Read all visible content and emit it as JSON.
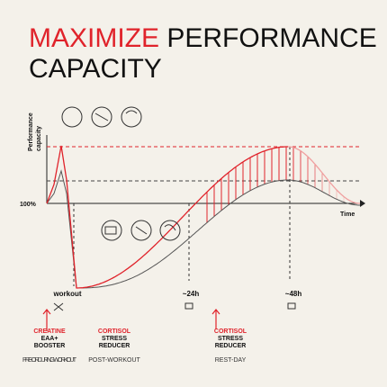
{
  "header": {
    "title_highlight": "MAXIMIZE",
    "title_rest": "PERFORMANCE",
    "title_line2": "CAPACITY"
  },
  "graph": {
    "y_label_1": "Performance",
    "y_label_2": "capacity",
    "baseline_label": "100%",
    "x_label": "Time",
    "markers": [
      "workout",
      "~24h",
      "~48h"
    ]
  },
  "products": [
    {
      "name": "CREATINE",
      "line2": "EAA+",
      "line3": "BOOSTER",
      "timing": "PRE- OR DURING WORKOUT"
    },
    {
      "name": "CORTISOL",
      "line2": "STRESS",
      "line3": "REDUCER",
      "timing": "POST-WORKOUT"
    },
    {
      "name": "CORTISOL",
      "line2": "STRESS",
      "line3": "REDUCER",
      "timing": "REST-DAY"
    }
  ]
}
